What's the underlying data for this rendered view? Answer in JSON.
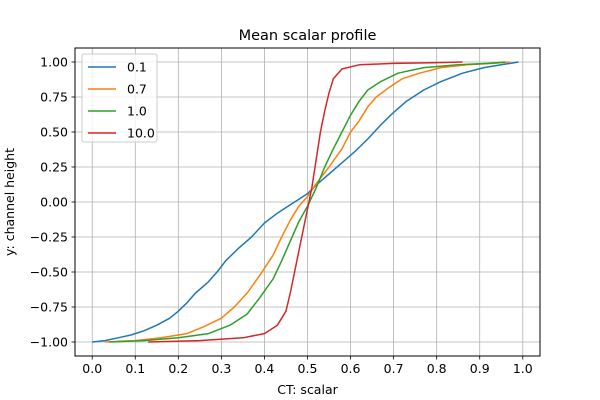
{
  "chart_data": {
    "type": "line",
    "title": "Mean scalar profile",
    "xlabel": "CT: scalar",
    "ylabel": "y: channel height",
    "xlim": [
      -0.04,
      1.04
    ],
    "ylim": [
      -1.1,
      1.1
    ],
    "xticks": [
      0.0,
      0.1,
      0.2,
      0.3,
      0.4,
      0.5,
      0.6,
      0.7,
      0.8,
      0.9,
      1.0
    ],
    "xtick_labels": [
      "0.0",
      "0.1",
      "0.2",
      "0.3",
      "0.4",
      "0.5",
      "0.6",
      "0.7",
      "0.8",
      "0.9",
      "1.0"
    ],
    "yticks": [
      -1.0,
      -0.75,
      -0.5,
      -0.25,
      0.0,
      0.25,
      0.5,
      0.75,
      1.0
    ],
    "ytick_labels": [
      "−1.00",
      "−0.75",
      "−0.50",
      "−0.25",
      "0.00",
      "0.25",
      "0.50",
      "0.75",
      "1.00"
    ],
    "grid": true,
    "legend_position": "top-left",
    "series": [
      {
        "name": "0.1",
        "color": "#1f77b4",
        "points": [
          [
            0.0,
            -1.0
          ],
          [
            0.03,
            -0.99
          ],
          [
            0.06,
            -0.97
          ],
          [
            0.09,
            -0.95
          ],
          [
            0.12,
            -0.92
          ],
          [
            0.15,
            -0.88
          ],
          [
            0.18,
            -0.83
          ],
          [
            0.2,
            -0.78
          ],
          [
            0.22,
            -0.72
          ],
          [
            0.24,
            -0.65
          ],
          [
            0.27,
            -0.57
          ],
          [
            0.29,
            -0.5
          ],
          [
            0.31,
            -0.42
          ],
          [
            0.34,
            -0.33
          ],
          [
            0.37,
            -0.25
          ],
          [
            0.4,
            -0.15
          ],
          [
            0.43,
            -0.08
          ],
          [
            0.46,
            -0.02
          ],
          [
            0.48,
            0.02
          ],
          [
            0.5,
            0.06
          ],
          [
            0.52,
            0.12
          ],
          [
            0.55,
            0.2
          ],
          [
            0.58,
            0.28
          ],
          [
            0.61,
            0.36
          ],
          [
            0.64,
            0.45
          ],
          [
            0.67,
            0.55
          ],
          [
            0.7,
            0.64
          ],
          [
            0.73,
            0.72
          ],
          [
            0.77,
            0.8
          ],
          [
            0.81,
            0.86
          ],
          [
            0.86,
            0.92
          ],
          [
            0.91,
            0.96
          ],
          [
            0.95,
            0.98
          ],
          [
            0.99,
            1.0
          ]
        ]
      },
      {
        "name": "0.7",
        "color": "#ff7f0e",
        "points": [
          [
            0.03,
            -1.0
          ],
          [
            0.1,
            -0.99
          ],
          [
            0.16,
            -0.97
          ],
          [
            0.22,
            -0.94
          ],
          [
            0.26,
            -0.89
          ],
          [
            0.3,
            -0.83
          ],
          [
            0.33,
            -0.75
          ],
          [
            0.36,
            -0.65
          ],
          [
            0.39,
            -0.52
          ],
          [
            0.42,
            -0.38
          ],
          [
            0.44,
            -0.25
          ],
          [
            0.46,
            -0.13
          ],
          [
            0.48,
            -0.03
          ],
          [
            0.5,
            0.04
          ],
          [
            0.52,
            0.13
          ],
          [
            0.55,
            0.25
          ],
          [
            0.58,
            0.38
          ],
          [
            0.6,
            0.5
          ],
          [
            0.62,
            0.58
          ],
          [
            0.64,
            0.68
          ],
          [
            0.66,
            0.75
          ],
          [
            0.69,
            0.82
          ],
          [
            0.72,
            0.88
          ],
          [
            0.76,
            0.92
          ],
          [
            0.81,
            0.96
          ],
          [
            0.87,
            0.98
          ],
          [
            0.93,
            0.99
          ],
          [
            0.97,
            1.0
          ]
        ]
      },
      {
        "name": "1.0",
        "color": "#2ca02c",
        "points": [
          [
            0.04,
            -1.0
          ],
          [
            0.12,
            -0.99
          ],
          [
            0.2,
            -0.97
          ],
          [
            0.27,
            -0.94
          ],
          [
            0.32,
            -0.88
          ],
          [
            0.36,
            -0.8
          ],
          [
            0.39,
            -0.68
          ],
          [
            0.42,
            -0.55
          ],
          [
            0.44,
            -0.42
          ],
          [
            0.46,
            -0.28
          ],
          [
            0.48,
            -0.14
          ],
          [
            0.5,
            -0.03
          ],
          [
            0.52,
            0.1
          ],
          [
            0.54,
            0.25
          ],
          [
            0.56,
            0.38
          ],
          [
            0.58,
            0.5
          ],
          [
            0.6,
            0.62
          ],
          [
            0.62,
            0.72
          ],
          [
            0.64,
            0.8
          ],
          [
            0.67,
            0.86
          ],
          [
            0.71,
            0.92
          ],
          [
            0.77,
            0.96
          ],
          [
            0.85,
            0.98
          ],
          [
            0.92,
            0.99
          ],
          [
            0.96,
            1.0
          ]
        ]
      },
      {
        "name": "10.0",
        "color": "#d62728",
        "points": [
          [
            0.13,
            -1.0
          ],
          [
            0.25,
            -0.99
          ],
          [
            0.35,
            -0.97
          ],
          [
            0.4,
            -0.94
          ],
          [
            0.43,
            -0.88
          ],
          [
            0.45,
            -0.78
          ],
          [
            0.46,
            -0.65
          ],
          [
            0.47,
            -0.5
          ],
          [
            0.48,
            -0.35
          ],
          [
            0.49,
            -0.2
          ],
          [
            0.5,
            -0.05
          ],
          [
            0.51,
            0.1
          ],
          [
            0.52,
            0.3
          ],
          [
            0.53,
            0.5
          ],
          [
            0.54,
            0.65
          ],
          [
            0.55,
            0.78
          ],
          [
            0.56,
            0.88
          ],
          [
            0.58,
            0.95
          ],
          [
            0.62,
            0.98
          ],
          [
            0.7,
            0.99
          ],
          [
            0.79,
            0.995
          ],
          [
            0.86,
            1.0
          ]
        ]
      }
    ]
  }
}
